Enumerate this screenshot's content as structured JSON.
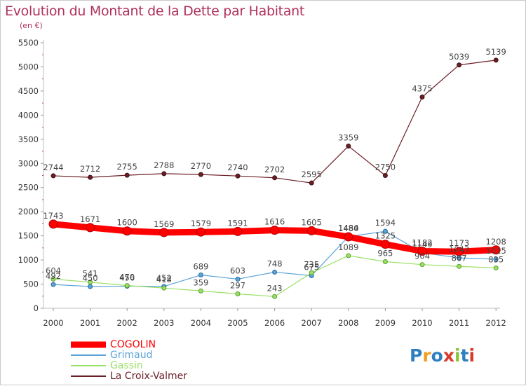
{
  "header": {
    "title": "Evolution du Montant de la Dette par Habitant",
    "subtitle": "(en €)"
  },
  "colors": {
    "title": "#b0305a",
    "cogolin": "#ff0000",
    "grimaud": "#5ba3d6",
    "gassin": "#99e066",
    "la_croix_valmer": "#6b1e26"
  },
  "logo": {
    "text": "Proxiti",
    "letter_colors": [
      "#2e7fc1",
      "#f2a01c",
      "#2e7fc1",
      "#d93b2b",
      "#8cc43f",
      "#2e7fc1",
      "#d93b2b"
    ]
  },
  "chart_data": {
    "type": "line",
    "title": "Evolution du Montant de la Dette par Habitant",
    "subtitle": "(en €)",
    "x": [
      "2000",
      "2001",
      "2002",
      "2003",
      "2004",
      "2005",
      "2006",
      "2007",
      "2008",
      "2009",
      "2010",
      "2011",
      "2012"
    ],
    "ylim": [
      0,
      5500
    ],
    "yticks": [
      0,
      500,
      1000,
      1500,
      2000,
      2500,
      3000,
      3500,
      4000,
      4500,
      5000,
      5500
    ],
    "grid": false,
    "legend_position": "bottom-left",
    "series": [
      {
        "name": "La Croix-Valmer",
        "color": "#6b1e26",
        "values": [
          2744,
          2712,
          2755,
          2788,
          2770,
          2740,
          2702,
          2595,
          3359,
          2750,
          4375,
          5039,
          5139
        ]
      },
      {
        "name": "Grimaud",
        "color": "#5ba3d6",
        "values": [
          492,
          450,
          456,
          452,
          689,
          603,
          748,
          675,
          1484,
          1594,
          1149,
          1043,
          1015
        ]
      },
      {
        "name": "Gassin",
        "color": "#99e066",
        "values": [
          604,
          541,
          470,
          418,
          359,
          297,
          243,
          735,
          1089,
          965,
          904,
          867,
          835
        ]
      },
      {
        "name": "COGOLIN",
        "color": "#ff0000",
        "values": [
          1743,
          1671,
          1600,
          1569,
          1579,
          1591,
          1616,
          1605,
          1480,
          1325,
          1182,
          1173,
          1208
        ]
      }
    ],
    "legend": [
      "COGOLIN",
      "Grimaud",
      "Gassin",
      "La Croix-Valmer"
    ]
  }
}
